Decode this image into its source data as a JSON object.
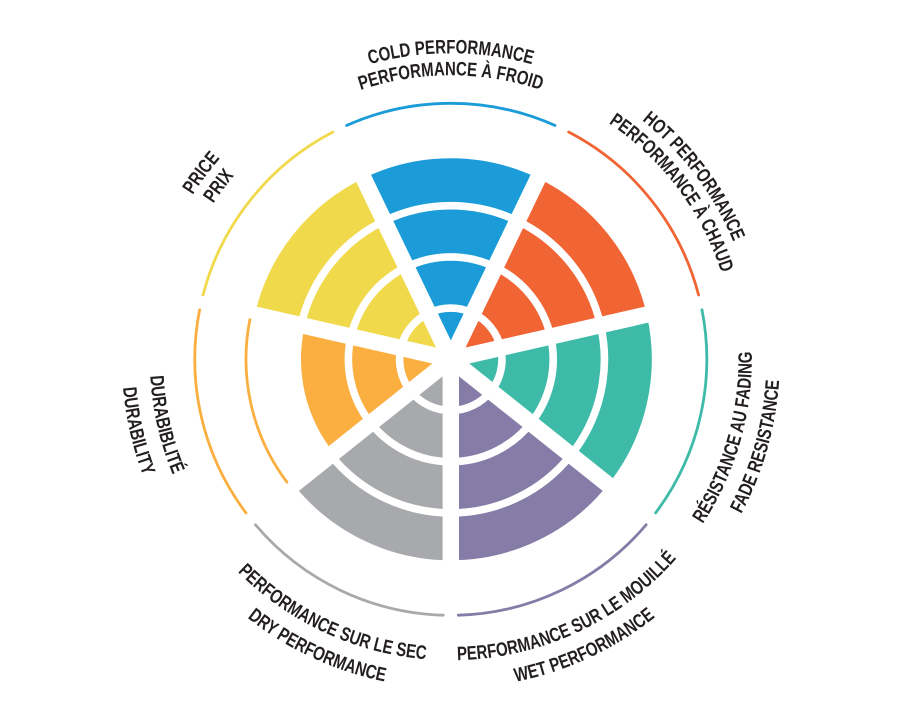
{
  "page": {
    "background_color": "#ffffff",
    "description": "Tire performance rating wheel with seven bilingual criteria sectors"
  },
  "chart_data": {
    "type": "bar",
    "layout": "polar-wheel",
    "rings_total": 5,
    "ring_values": [
      1,
      2,
      3,
      4,
      5
    ],
    "direction": "clockwise-from-top",
    "legend_position": "around-rim",
    "grid": "concentric-rings",
    "label_color": "#231f20",
    "categories": [
      "COLD PERFORMANCE / PERFORMANCE À FROID",
      "HOT PERFORMANCE / PERFORMANCE À CHAUD",
      "RÉSISTANCE AU FADING / FADE RESISTANCE",
      "PERFORMANCE SUR LE MOUILLÉ / WET PERFORMANCE",
      "PERFORMANCE SUR LE SEC / DRY PERFORMANCE",
      "DURABIBLITÉ / DURABILITY",
      "PRICE / PRIX"
    ],
    "values": [
      4,
      4,
      4,
      4,
      4,
      3,
      4
    ],
    "sectors": [
      {
        "id": "cold-performance",
        "label_en": "COLD PERFORMANCE",
        "label_fr": "PERFORMANCE À FROID",
        "value": 4,
        "max": 5,
        "color": "#1b9cd8"
      },
      {
        "id": "hot-performance",
        "label_en": "HOT PERFORMANCE",
        "label_fr": "PERFORMANCE À CHAUD",
        "value": 4,
        "max": 5,
        "color": "#f16433"
      },
      {
        "id": "fade-resistance",
        "label_en": "FADE RESISTANCE",
        "label_fr": "RÉSISTANCE AU FADING",
        "value": 4,
        "max": 5,
        "color": "#3ebba8"
      },
      {
        "id": "wet-performance",
        "label_en": "WET PERFORMANCE",
        "label_fr": "PERFORMANCE SUR LE MOUILLÉ",
        "value": 4,
        "max": 5,
        "color": "#857ca7"
      },
      {
        "id": "dry-performance",
        "label_en": "DRY PERFORMANCE",
        "label_fr": "PERFORMANCE SUR LE SEC",
        "value": 4,
        "max": 5,
        "color": "#a7a9ac"
      },
      {
        "id": "durability",
        "label_en": "DURABILITY",
        "label_fr": "DURABIBLITÉ",
        "value": 3,
        "max": 5,
        "color": "#faaf40"
      },
      {
        "id": "price",
        "label_en": "PRICE",
        "label_fr": "PRIX",
        "value": 4,
        "max": 5,
        "color": "#f1d94c"
      }
    ]
  }
}
